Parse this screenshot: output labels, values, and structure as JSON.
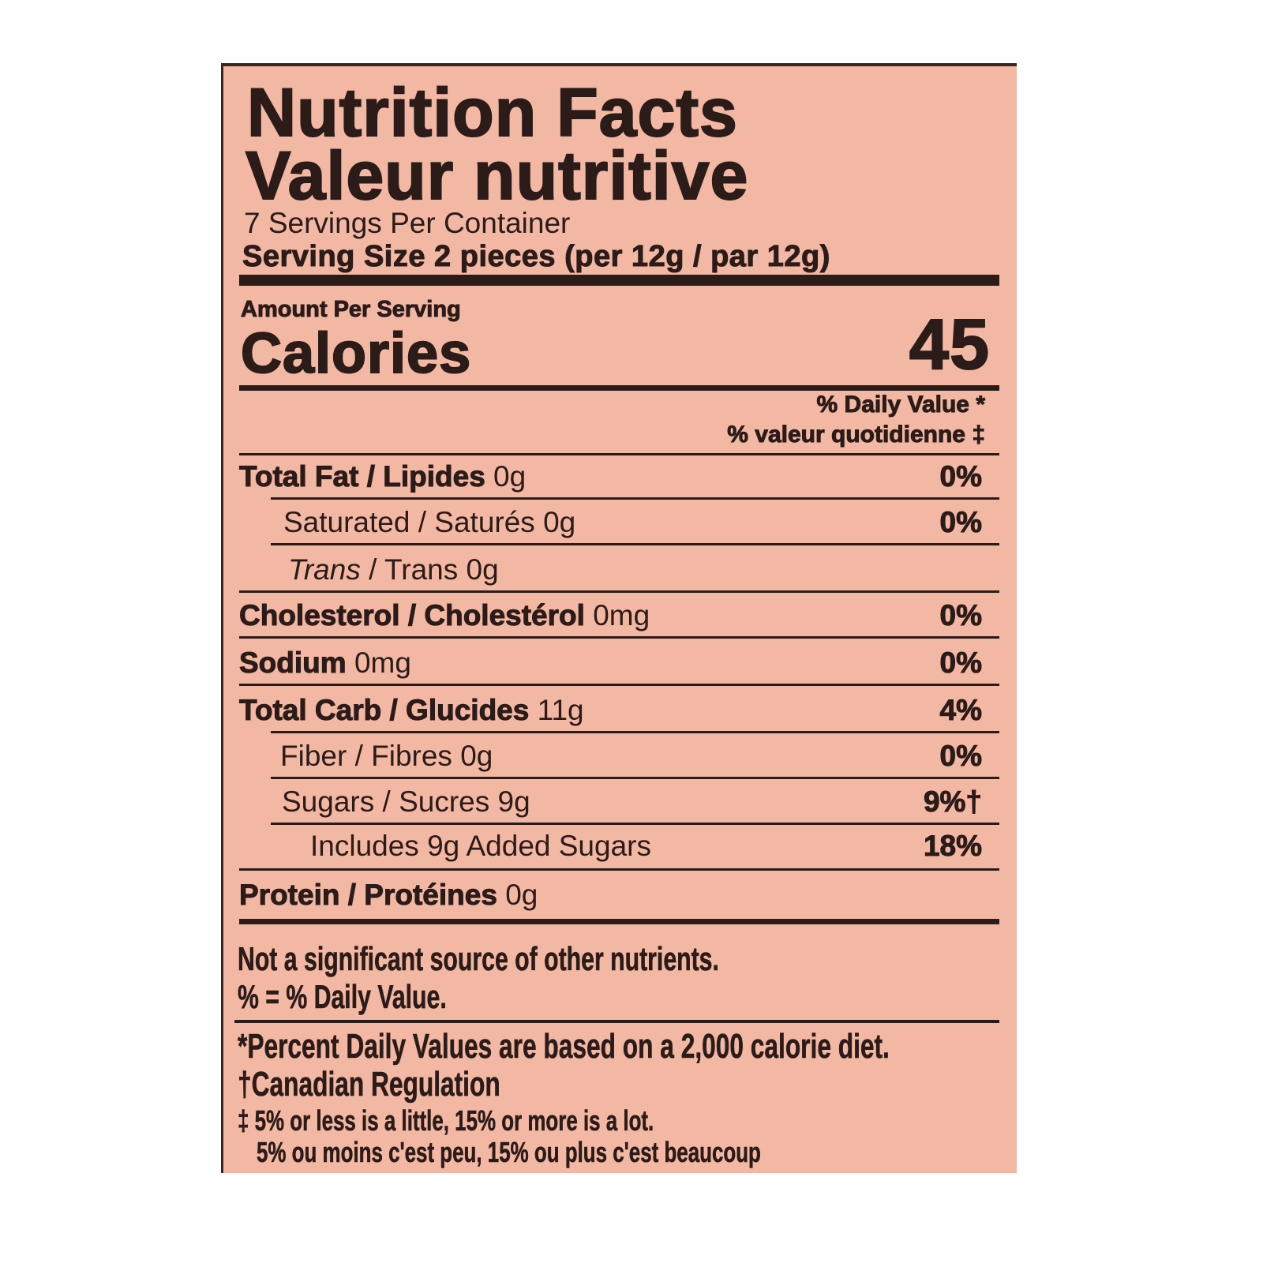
{
  "title_en": "Nutrition Facts",
  "title_fr": "Valeur nutritive",
  "servings": "7 Servings Per Container",
  "serving_size": "Serving Size 2 pieces (per 12g / par 12g)",
  "amount_per_serving": "Amount Per Serving",
  "calories_label": "Calories",
  "calories_value": "45",
  "dv_en": "% Daily Value *",
  "dv_fr": "% valeur quotidienne ‡",
  "nutrients": [
    {
      "bold": "Total Fat / Lipides",
      "italic": "",
      "text": " 0g",
      "dv": "0%"
    },
    {
      "bold": "",
      "italic": "",
      "text": "Saturated / Saturés 0g",
      "dv": "0%"
    },
    {
      "bold": "",
      "italic": "Trans",
      "text": " / Trans 0g",
      "dv": ""
    },
    {
      "bold": "Cholesterol / Cholestérol",
      "italic": "",
      "text": " 0mg",
      "dv": "0%"
    },
    {
      "bold": "Sodium",
      "italic": "",
      "text": " 0mg",
      "dv": "0%"
    },
    {
      "bold": "Total Carb / Glucides",
      "italic": "",
      "text": " 11g",
      "dv": "4%"
    },
    {
      "bold": "",
      "italic": "",
      "text": "Fiber / Fibres 0g",
      "dv": "0%"
    },
    {
      "bold": "",
      "italic": "",
      "text": "Sugars / Sucres 9g",
      "dv": "9%†"
    },
    {
      "bold": "",
      "italic": "",
      "text": "Includes 9g Added Sugars",
      "dv": "18%"
    },
    {
      "bold": "Protein / Protéines",
      "italic": "",
      "text": " 0g",
      "dv": ""
    }
  ],
  "footnotes": {
    "not_significant": "Not a significant source of other nutrients.",
    "percent_equals": "% = % Daily Value.",
    "percent_dv": "*Percent Daily Values are based on a 2,000 calorie diet.",
    "canadian": "†Canadian Regulation",
    "little_lot_en": "‡ 5% or less is a little, 15% or more is a lot.",
    "little_lot_fr": "5% ou moins c'est peu, 15% ou plus c'est beaucoup"
  },
  "colors": {
    "background": "#f3b8a3",
    "ink": "#2b1b19"
  }
}
